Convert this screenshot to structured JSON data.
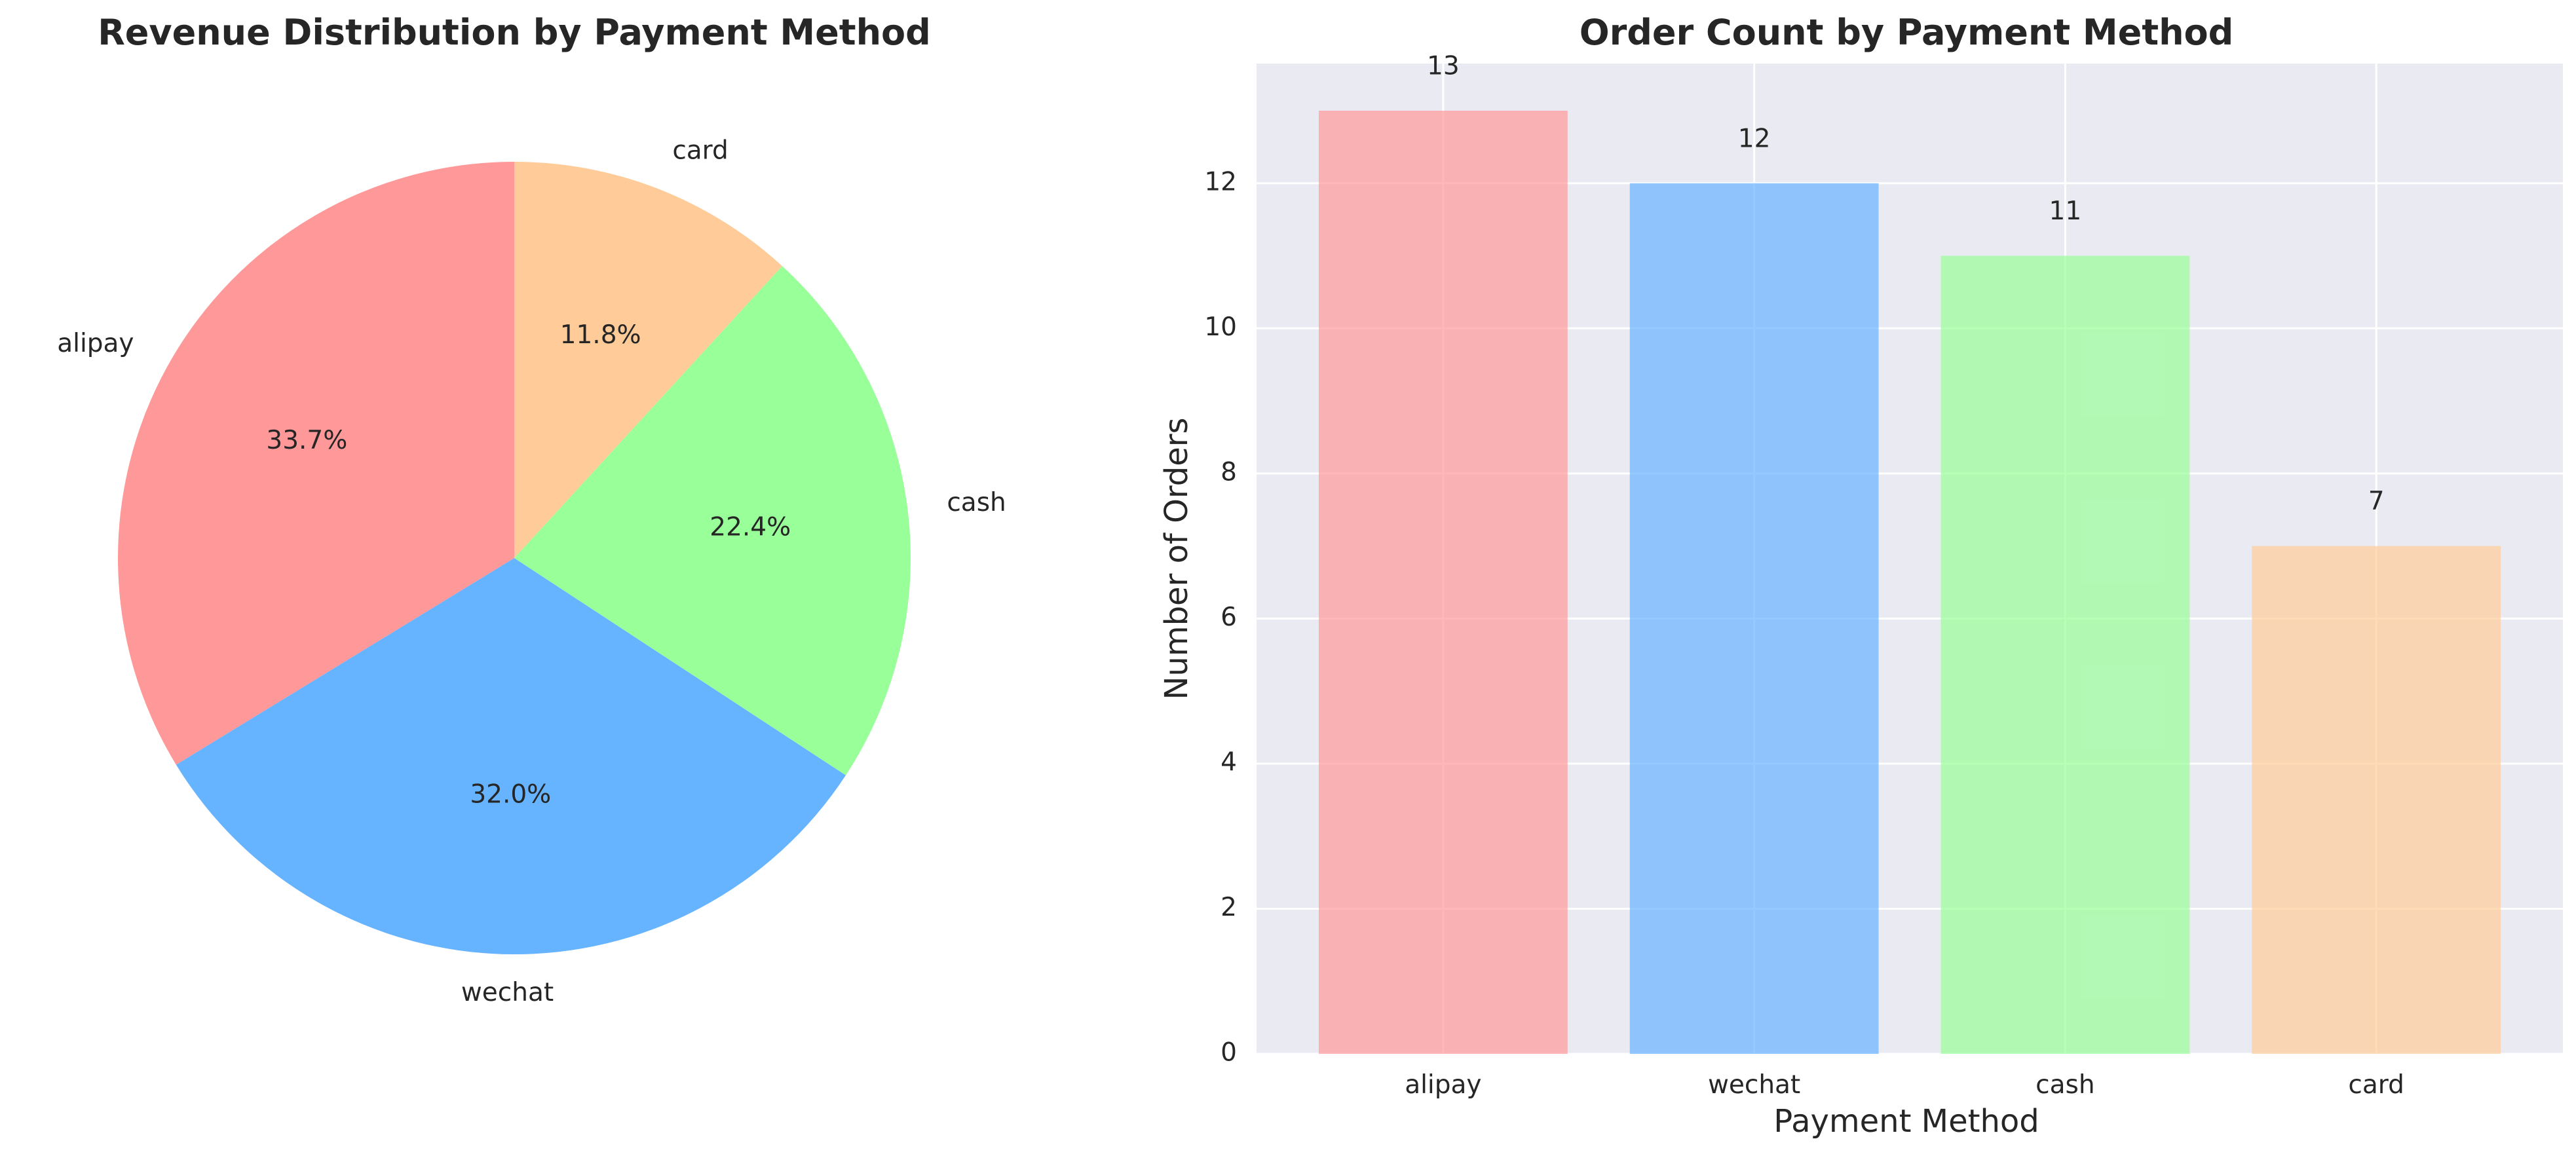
{
  "chart_data": [
    {
      "type": "pie",
      "title": "Revenue Distribution by Payment Method",
      "labels": [
        "alipay",
        "wechat",
        "cash",
        "card"
      ],
      "values": [
        33.7,
        32.0,
        22.4,
        11.8
      ],
      "value_labels": [
        "33.7%",
        "32.0%",
        "22.4%",
        "11.8%"
      ],
      "colors": [
        "#ff9999",
        "#66b3ff",
        "#99ff99",
        "#ffcc99"
      ],
      "start_angle": 90,
      "direction": "counterclockwise"
    },
    {
      "type": "bar",
      "title": "Order Count by Payment Method",
      "categories": [
        "alipay",
        "wechat",
        "cash",
        "card"
      ],
      "values": [
        13,
        12,
        11,
        7
      ],
      "value_labels": [
        "13",
        "12",
        "11",
        "7"
      ],
      "colors": [
        "#ff9999",
        "#66b3ff",
        "#99ff99",
        "#ffcc99"
      ],
      "xlabel": "Payment Method",
      "ylabel": "Number of Orders",
      "ylim": [
        0,
        13.65
      ],
      "yticks": [
        0,
        2,
        4,
        6,
        8,
        10,
        12
      ],
      "ytick_labels": [
        "0",
        "2",
        "4",
        "6",
        "8",
        "10",
        "12"
      ],
      "grid": true,
      "background": "#eaeaf2"
    }
  ]
}
